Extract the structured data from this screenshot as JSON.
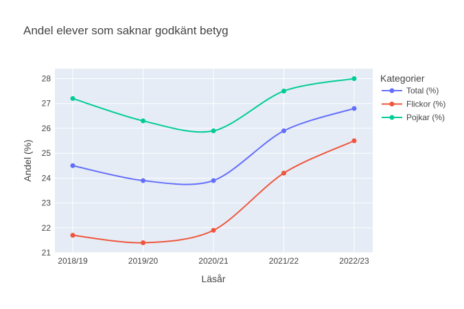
{
  "chart_data": {
    "type": "line",
    "title": "Andel elever som saknar godkänt betyg",
    "xlabel": "Läsår",
    "ylabel": "Andel (%)",
    "categories": [
      "2018/19",
      "2019/20",
      "2020/21",
      "2021/22",
      "2022/23"
    ],
    "ylim": [
      21,
      28.4
    ],
    "yticks": [
      21,
      22,
      23,
      24,
      25,
      26,
      27,
      28
    ],
    "grid": true,
    "legend": {
      "title": "Kategorier",
      "placement": "top-right"
    },
    "series": [
      {
        "name": "Total (%)",
        "color": "#636efa",
        "values": [
          24.5,
          23.9,
          23.9,
          25.9,
          26.8
        ]
      },
      {
        "name": "Flickor (%)",
        "color": "#ef553b",
        "values": [
          21.7,
          21.4,
          21.9,
          24.2,
          25.5
        ]
      },
      {
        "name": "Pojkar (%)",
        "color": "#00cc96",
        "values": [
          27.2,
          26.3,
          25.9,
          27.5,
          28.0
        ]
      }
    ]
  }
}
